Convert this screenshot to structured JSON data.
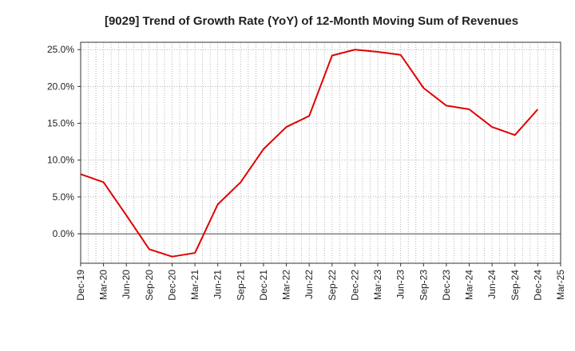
{
  "chart_data": {
    "type": "line",
    "title": "[9029]  Trend of Growth Rate (YoY) of 12-Month Moving Sum of Revenues",
    "xlabel": "",
    "ylabel": "",
    "x_ticks": [
      "Dec-19",
      "Mar-20",
      "Jun-20",
      "Sep-20",
      "Dec-20",
      "Mar-21",
      "Jun-21",
      "Sep-21",
      "Dec-21",
      "Mar-22",
      "Jun-22",
      "Sep-22",
      "Dec-22",
      "Mar-23",
      "Jun-23",
      "Sep-23",
      "Dec-23",
      "Mar-24",
      "Jun-24",
      "Sep-24",
      "Dec-24",
      "Mar-25"
    ],
    "y_ticks": [
      "25.0%",
      "20.0%",
      "15.0%",
      "10.0%",
      "5.0%",
      "0.0%"
    ],
    "y_tick_values": [
      25,
      20,
      15,
      10,
      5,
      0
    ],
    "ylim": [
      -4,
      26
    ],
    "grid": true,
    "line_color": "#e00000",
    "series": [
      {
        "x": [
          "Dec-19",
          "Mar-20",
          "Jun-20",
          "Sep-20",
          "Dec-20",
          "Mar-21",
          "Jun-21",
          "Sep-21",
          "Dec-21",
          "Mar-22",
          "Jun-22",
          "Sep-22",
          "Dec-22",
          "Mar-23",
          "Jun-23",
          "Sep-23",
          "Dec-23",
          "Mar-24",
          "Jun-24",
          "Sep-24",
          "Dec-24"
        ],
        "values": [
          8.1,
          7.0,
          2.5,
          -2.1,
          -3.1,
          -2.6,
          4.0,
          7.0,
          11.5,
          14.5,
          16.0,
          24.2,
          25.0,
          24.7,
          24.3,
          19.8,
          17.4,
          16.9,
          14.5,
          13.4,
          16.9
        ]
      }
    ]
  }
}
